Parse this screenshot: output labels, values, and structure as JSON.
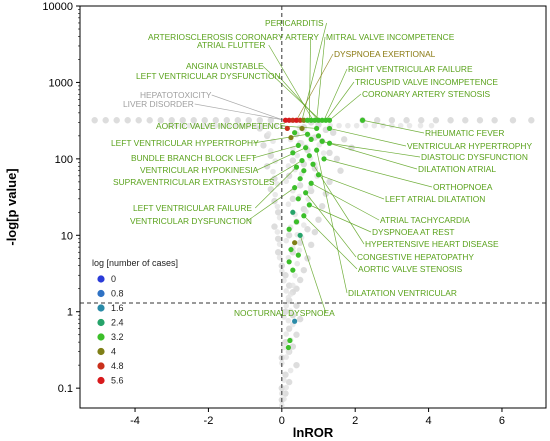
{
  "chart_data": {
    "type": "scatter",
    "title": "",
    "xlabel": "lnROR",
    "ylabel": "-log[p value]",
    "x_scale": "linear",
    "y_scale": "log",
    "xlim": [
      -5.5,
      7.2
    ],
    "ylim": [
      0.055,
      10000
    ],
    "x_ticks": [
      -4,
      -2,
      0,
      2,
      4,
      6
    ],
    "x_tick_labels": [
      "-4",
      "-2",
      "0",
      "2",
      "4",
      "6"
    ],
    "y_ticks": [
      0.1,
      1,
      10,
      100,
      1000,
      10000
    ],
    "y_tick_labels": [
      "0.1",
      "1",
      "10",
      "100",
      "1000",
      "10000"
    ],
    "grid": false,
    "threshold_lines": {
      "x": 0,
      "y": 1.3
    },
    "legend": {
      "title": "log [number of cases]",
      "position": "left",
      "entries": [
        {
          "label": "0",
          "color": "#2a3bd8"
        },
        {
          "label": "0.8",
          "color": "#2f72c4"
        },
        {
          "label": "1.6",
          "color": "#2a8ba8"
        },
        {
          "label": "2.4",
          "color": "#26a36a"
        },
        {
          "label": "3.2",
          "color": "#3cbf2a"
        },
        {
          "label": "4",
          "color": "#7f7f17"
        },
        {
          "label": "4.8",
          "color": "#c9301c"
        },
        {
          "label": "5.6",
          "color": "#d8191c"
        }
      ]
    },
    "background_points": [
      [
        -5.1,
        320
      ],
      [
        -4.8,
        320
      ],
      [
        -4.5,
        320
      ],
      [
        -4.2,
        320
      ],
      [
        -3.9,
        320
      ],
      [
        -3.6,
        320
      ],
      [
        -3.3,
        320
      ],
      [
        -3.0,
        320
      ],
      [
        -2.7,
        320
      ],
      [
        -2.4,
        320
      ],
      [
        -2.1,
        320
      ],
      [
        -1.8,
        320
      ],
      [
        -1.5,
        320
      ],
      [
        -1.2,
        320
      ],
      [
        -0.9,
        320
      ],
      [
        -0.6,
        320
      ],
      [
        -0.3,
        320
      ],
      [
        2.2,
        320
      ],
      [
        2.6,
        320
      ],
      [
        3.0,
        320
      ],
      [
        3.4,
        320
      ],
      [
        3.8,
        320
      ],
      [
        4.2,
        320
      ],
      [
        4.6,
        320
      ],
      [
        5.0,
        320
      ],
      [
        5.4,
        320
      ],
      [
        5.8,
        320
      ],
      [
        6.3,
        320
      ],
      [
        6.8,
        320
      ],
      [
        -0.6,
        250
      ],
      [
        -0.4,
        200
      ],
      [
        1.4,
        220
      ],
      [
        1.7,
        180
      ],
      [
        -0.5,
        150
      ],
      [
        -0.3,
        110
      ],
      [
        1.9,
        140
      ],
      [
        1.5,
        100
      ],
      [
        -0.4,
        80
      ],
      [
        1.6,
        70
      ],
      [
        -0.2,
        55
      ],
      [
        1.3,
        50
      ],
      [
        -0.3,
        40
      ],
      [
        1.2,
        35
      ],
      [
        -0.2,
        28
      ],
      [
        1.1,
        24
      ],
      [
        -0.1,
        20
      ],
      [
        1.0,
        16
      ],
      [
        -0.2,
        13
      ],
      [
        0.9,
        11
      ],
      [
        -0.1,
        9
      ],
      [
        0.8,
        7.5
      ],
      [
        -0.1,
        6
      ],
      [
        0.7,
        5
      ],
      [
        0.0,
        4
      ],
      [
        0.6,
        3.5
      ],
      [
        0.1,
        3
      ],
      [
        0.5,
        2.6
      ],
      [
        0.2,
        2.2
      ],
      [
        0.4,
        2.0
      ],
      [
        0.3,
        1.8
      ],
      [
        0.2,
        1.4
      ],
      [
        0.4,
        1.2
      ],
      [
        0.1,
        1.0
      ],
      [
        0.3,
        0.9
      ],
      [
        0.5,
        0.8
      ],
      [
        0.2,
        0.6
      ],
      [
        0.4,
        0.5
      ],
      [
        0.1,
        0.4
      ],
      [
        0.3,
        0.35
      ],
      [
        0.2,
        0.3
      ],
      [
        0.0,
        0.25
      ],
      [
        0.4,
        0.2
      ],
      [
        0.1,
        0.15
      ],
      [
        0.2,
        0.12
      ],
      [
        0.0,
        0.1
      ],
      [
        0.1,
        0.085
      ],
      [
        0.0,
        0.07
      ],
      [
        0.8,
        300
      ],
      [
        1.0,
        280
      ],
      [
        0.6,
        260
      ],
      [
        1.2,
        240
      ],
      [
        0.4,
        210
      ],
      [
        0.9,
        190
      ],
      [
        1.1,
        170
      ],
      [
        0.5,
        160
      ],
      [
        0.7,
        130
      ],
      [
        1.3,
        120
      ],
      [
        0.3,
        95
      ],
      [
        0.6,
        85
      ],
      [
        0.9,
        75
      ],
      [
        0.2,
        60
      ],
      [
        0.5,
        45
      ],
      [
        0.8,
        38
      ],
      [
        0.3,
        30
      ],
      [
        0.6,
        22
      ],
      [
        0.4,
        15
      ],
      [
        0.7,
        12
      ],
      [
        0.2,
        10
      ],
      [
        0.5,
        8
      ],
      [
        0.3,
        6
      ]
    ],
    "colored_points": [
      {
        "x": 0.1,
        "y": 320,
        "c": "#d8191c"
      },
      {
        "x": 0.2,
        "y": 320,
        "c": "#d8191c"
      },
      {
        "x": 0.3,
        "y": 320,
        "c": "#c9301c"
      },
      {
        "x": 0.4,
        "y": 320,
        "c": "#d8191c"
      },
      {
        "x": 0.5,
        "y": 320,
        "c": "#c9301c"
      },
      {
        "x": 0.6,
        "y": 320,
        "c": "#7f7f17"
      },
      {
        "x": 0.7,
        "y": 320,
        "c": "#3cbf2a"
      },
      {
        "x": 0.8,
        "y": 320,
        "c": "#3cbf2a"
      },
      {
        "x": 0.9,
        "y": 320,
        "c": "#3cbf2a"
      },
      {
        "x": 1.0,
        "y": 320,
        "c": "#3cbf2a"
      },
      {
        "x": 1.1,
        "y": 320,
        "c": "#3cbf2a"
      },
      {
        "x": 1.2,
        "y": 320,
        "c": "#3cbf2a"
      },
      {
        "x": 1.3,
        "y": 320,
        "c": "#3cbf2a"
      },
      {
        "x": 0.15,
        "y": 250,
        "c": "#c9301c"
      },
      {
        "x": 0.55,
        "y": 250,
        "c": "#7f7f17"
      },
      {
        "x": 0.95,
        "y": 250,
        "c": "#3cbf2a"
      },
      {
        "x": 1.3,
        "y": 250,
        "c": "#3cbf2a"
      },
      {
        "x": 2.2,
        "y": 320,
        "c": "#3cbf2a"
      },
      {
        "x": 0.35,
        "y": 220,
        "c": "#3cbf2a"
      },
      {
        "x": 0.7,
        "y": 210,
        "c": "#3cbf2a"
      },
      {
        "x": 1.0,
        "y": 200,
        "c": "#3cbf2a"
      },
      {
        "x": 0.25,
        "y": 190,
        "c": "#7f7f17"
      },
      {
        "x": 0.8,
        "y": 180,
        "c": "#3cbf2a"
      },
      {
        "x": 1.1,
        "y": 170,
        "c": "#3cbf2a"
      },
      {
        "x": 1.3,
        "y": 160,
        "c": "#3cbf2a"
      },
      {
        "x": 0.45,
        "y": 150,
        "c": "#3cbf2a"
      },
      {
        "x": 0.65,
        "y": 140,
        "c": "#3cbf2a"
      },
      {
        "x": 0.95,
        "y": 130,
        "c": "#3cbf2a"
      },
      {
        "x": 0.3,
        "y": 120,
        "c": "#3cbf2a"
      },
      {
        "x": 0.75,
        "y": 110,
        "c": "#3cbf2a"
      },
      {
        "x": 1.15,
        "y": 100,
        "c": "#3cbf2a"
      },
      {
        "x": 0.55,
        "y": 95,
        "c": "#3cbf2a"
      },
      {
        "x": 0.85,
        "y": 85,
        "c": "#3cbf2a"
      },
      {
        "x": 0.4,
        "y": 78,
        "c": "#3cbf2a"
      },
      {
        "x": 0.6,
        "y": 70,
        "c": "#3cbf2a"
      },
      {
        "x": 1.0,
        "y": 62,
        "c": "#3cbf2a"
      },
      {
        "x": 0.5,
        "y": 55,
        "c": "#3cbf2a"
      },
      {
        "x": 0.8,
        "y": 48,
        "c": "#3cbf2a"
      },
      {
        "x": 0.35,
        "y": 42,
        "c": "#3cbf2a"
      },
      {
        "x": 0.65,
        "y": 36,
        "c": "#3cbf2a"
      },
      {
        "x": 0.45,
        "y": 30,
        "c": "#3cbf2a"
      },
      {
        "x": 0.75,
        "y": 25,
        "c": "#3cbf2a"
      },
      {
        "x": 0.3,
        "y": 20,
        "c": "#26a36a"
      },
      {
        "x": 0.6,
        "y": 18,
        "c": "#3cbf2a"
      },
      {
        "x": 0.4,
        "y": 15,
        "c": "#3cbf2a"
      },
      {
        "x": 0.2,
        "y": 12,
        "c": "#3cbf2a"
      },
      {
        "x": 0.5,
        "y": 10,
        "c": "#26a36a"
      },
      {
        "x": 0.35,
        "y": 8,
        "c": "#7f7f17"
      },
      {
        "x": 0.25,
        "y": 6.5,
        "c": "#3cbf2a"
      },
      {
        "x": 0.45,
        "y": 5.5,
        "c": "#3cbf2a"
      },
      {
        "x": 0.2,
        "y": 4.5,
        "c": "#3cbf2a"
      },
      {
        "x": 0.3,
        "y": 3.5,
        "c": "#3cbf2a"
      },
      {
        "x": 0.35,
        "y": 0.75,
        "c": "#2a8ba8"
      },
      {
        "x": 0.22,
        "y": 0.42,
        "c": "#3cbf2a"
      },
      {
        "x": 0.18,
        "y": 0.34,
        "c": "#3cbf2a"
      }
    ],
    "annotations": [
      {
        "text": "PERICARDITIS",
        "color": "#5aa21c",
        "to": [
          0.55,
          320
        ]
      },
      {
        "text": "ARTERIOSCLEROSIS CORONARY ARTERY",
        "color": "#5aa21c",
        "to": [
          0.75,
          320
        ]
      },
      {
        "text": "MITRAL VALVE INCOMPETENCE",
        "color": "#5aa21c",
        "to": [
          0.95,
          320
        ]
      },
      {
        "text": "ATRIAL FLUTTER",
        "color": "#5aa21c",
        "to": [
          0.85,
          320
        ]
      },
      {
        "text": "DYSPNOEA EXERTIONAL",
        "color": "#8a7a12",
        "to": [
          0.4,
          320
        ]
      },
      {
        "text": "ANGINA UNSTABLE",
        "color": "#5aa21c",
        "to": [
          1.05,
          320
        ]
      },
      {
        "text": "RIGHT VENTRICULAR FAILURE",
        "color": "#5aa21c",
        "to": [
          1.15,
          320
        ]
      },
      {
        "text": "LEFT VENTRICULAR DYSFUNCTION",
        "color": "#5aa21c",
        "to": [
          1.0,
          320
        ]
      },
      {
        "text": "TRICUSPID VALVE INCOMPETENCE",
        "color": "#5aa21c",
        "to": [
          1.2,
          320
        ]
      },
      {
        "text": "CORONARY ARTERY STENOSIS",
        "color": "#5aa21c",
        "to": [
          1.3,
          320
        ]
      },
      {
        "text": "HEPATOTOXICITY",
        "color": "#9e9e9e",
        "to": [
          0.05,
          320
        ]
      },
      {
        "text": "LIVER DISORDER",
        "color": "#9e9e9e",
        "to": [
          0.1,
          320
        ]
      },
      {
        "text": "AORTIC VALVE INCOMPETENCE",
        "color": "#5aa21c",
        "to": [
          0.95,
          250
        ]
      },
      {
        "text": "RHEUMATIC FEVER",
        "color": "#5aa21c",
        "to": [
          2.2,
          320
        ]
      },
      {
        "text": "LEFT VENTRICULAR HYPERTROPHY",
        "color": "#5aa21c",
        "to": [
          0.7,
          210
        ]
      },
      {
        "text": "VENTRICULAR HYPERTROPHY",
        "color": "#5aa21c",
        "to": [
          1.3,
          250
        ]
      },
      {
        "text": "BUNDLE BRANCH BLOCK LEFT",
        "color": "#5aa21c",
        "to": [
          0.45,
          150
        ]
      },
      {
        "text": "DIASTOLIC DYSFUNCTION",
        "color": "#5aa21c",
        "to": [
          1.3,
          160
        ]
      },
      {
        "text": "VENTRICULAR HYPOKINESIA",
        "color": "#5aa21c",
        "to": [
          0.65,
          140
        ]
      },
      {
        "text": "DILATATION ATRIAL",
        "color": "#5aa21c",
        "to": [
          1.1,
          170
        ]
      },
      {
        "text": "SUPRAVENTRICULAR EXTRASYSTOLES",
        "color": "#5aa21c",
        "to": [
          0.55,
          95
        ]
      },
      {
        "text": "ORTHOPNOEA",
        "color": "#5aa21c",
        "to": [
          1.15,
          100
        ]
      },
      {
        "text": "LEFT ATRIAL DILATATION",
        "color": "#5aa21c",
        "to": [
          1.0,
          62
        ]
      },
      {
        "text": "LEFT VENTRICULAR FAILURE",
        "color": "#5aa21c",
        "to": [
          0.4,
          78
        ]
      },
      {
        "text": "VENTRICULAR DYSFUNCTION",
        "color": "#5aa21c",
        "to": [
          0.35,
          42
        ]
      },
      {
        "text": "ATRIAL TACHYCARDIA",
        "color": "#5aa21c",
        "to": [
          0.8,
          48
        ]
      },
      {
        "text": "DYSPNOEA AT REST",
        "color": "#5aa21c",
        "to": [
          0.75,
          25
        ]
      },
      {
        "text": "HYPERTENSIVE HEART DISEASE",
        "color": "#5aa21c",
        "to": [
          0.85,
          85
        ]
      },
      {
        "text": "CONGESTIVE HEPATOPATHY",
        "color": "#5aa21c",
        "to": [
          0.65,
          36
        ]
      },
      {
        "text": "AORTIC VALVE STENOSIS",
        "color": "#5aa21c",
        "to": [
          0.6,
          18
        ]
      },
      {
        "text": "DILATATION VENTRICULAR",
        "color": "#5aa21c",
        "to": [
          0.95,
          130
        ]
      },
      {
        "text": "NOCTURNAL DYSPNOEA",
        "color": "#5aa21c",
        "to": [
          0.5,
          10
        ]
      }
    ]
  }
}
